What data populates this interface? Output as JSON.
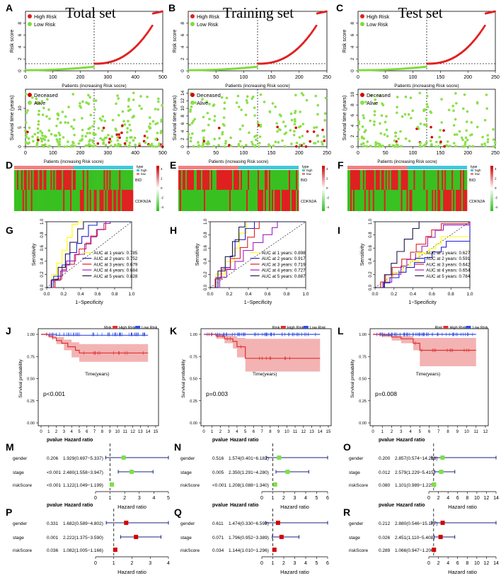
{
  "columns": [
    {
      "title": "Total set"
    },
    {
      "title": "Training set"
    },
    {
      "title": "Test set"
    }
  ],
  "colors": {
    "high": "#e02020",
    "low": "#7ddc3a",
    "deceased": "#d40000",
    "alive": "#8be04a",
    "km_high": "#e03030",
    "km_low": "#3050e0",
    "km_band": "#f3b3b3",
    "forest": "#1a237e",
    "forest_sq_green": "#7ee04a",
    "forest_sq_red": "#d40000",
    "heat_red": "#e02020",
    "heat_green": "#38c020",
    "heat_top_pink": "#f08080",
    "heat_top_cyan": "#40c8d8"
  },
  "chart_data": [
    {
      "panel": "A",
      "type": "scatter",
      "title": "Total set",
      "xlabel": "Patients (increasing Risk socre)",
      "ylabel": "Risk score",
      "n": 500,
      "cutoff": 250,
      "cutoff_value": 1.2,
      "ylim": [
        0,
        10
      ],
      "xticks": [
        "0",
        "100",
        "200",
        "300",
        "400",
        "500"
      ],
      "yticks": [
        "0",
        "2",
        "4",
        "6",
        "8"
      ],
      "legend": [
        "High Risk",
        "Low Risk"
      ]
    },
    {
      "panel": "B",
      "type": "scatter",
      "title": "Training set",
      "xlabel": "Patients (increasing Risk socre)",
      "ylabel": "Risk score",
      "n": 250,
      "cutoff": 125,
      "cutoff_value": 1.2,
      "ylim": [
        0,
        10
      ],
      "xticks": [
        "0",
        "50",
        "100",
        "150",
        "200",
        "250"
      ],
      "yticks": [
        "0",
        "2",
        "4",
        "6",
        "8"
      ],
      "legend": [
        "High Risk",
        "Low Risk"
      ]
    },
    {
      "panel": "C",
      "type": "scatter",
      "title": "Test set",
      "xlabel": "Patients (increasing Risk socre)",
      "ylabel": "Risk score",
      "n": 250,
      "cutoff": 125,
      "cutoff_value": 1.2,
      "ylim": [
        0,
        10
      ],
      "xticks": [
        "0",
        "50",
        "100",
        "150",
        "200",
        "250"
      ],
      "yticks": [
        "0",
        "2",
        "4",
        "6",
        "8"
      ],
      "legend": [
        "High Risk",
        "Low Risk"
      ]
    },
    {
      "panel": "",
      "type": "scatter",
      "xlabel": "",
      "ylabel": "Survival time (years)",
      "n": 500,
      "cutoff": 250,
      "ylim": [
        0,
        15
      ],
      "xticks": [
        "0",
        "100",
        "200",
        "300",
        "400",
        "500"
      ],
      "yticks": [
        "0",
        "5",
        "10"
      ],
      "legend": [
        "Deceased",
        "Alive"
      ]
    },
    {
      "panel": "",
      "type": "scatter",
      "xlabel": "",
      "ylabel": "Survival time (years)",
      "n": 250,
      "cutoff": 125,
      "ylim": [
        0,
        15
      ],
      "xticks": [
        "0",
        "50",
        "100",
        "150",
        "200",
        "250"
      ],
      "yticks": [
        "0",
        "2",
        "4",
        "6",
        "8",
        "10",
        "12",
        "14"
      ],
      "legend": [
        "Deceased",
        "Alive"
      ]
    },
    {
      "panel": "",
      "type": "scatter",
      "xlabel": "",
      "ylabel": "Survival time (years)",
      "n": 250,
      "cutoff": 125,
      "ylim": [
        0,
        11
      ],
      "xticks": [
        "0",
        "50",
        "100",
        "150",
        "200",
        "250"
      ],
      "yticks": [
        "0",
        "2",
        "4",
        "6",
        "8",
        "10"
      ],
      "legend": [
        "Deceased",
        "Alive"
      ]
    },
    {
      "panel": "D",
      "type": "heatmap",
      "title": "Patients (increasing Risk socre)",
      "rows": [
        "BID",
        "CDKN2A"
      ],
      "legend_title": "type",
      "groups": [
        "high",
        "low"
      ],
      "scale": [
        "4",
        "2",
        "0",
        "-2",
        "-4"
      ]
    },
    {
      "panel": "E",
      "type": "heatmap",
      "title": "Patients (increasing Risk socre)",
      "rows": [
        "BID",
        "CDKN2A"
      ],
      "legend_title": "type",
      "groups": [
        "high",
        "low"
      ],
      "scale": [
        "4",
        "2",
        "0",
        "-2",
        "-4"
      ]
    },
    {
      "panel": "F",
      "type": "heatmap",
      "title": "Patients (increasing Risk socre)",
      "rows": [
        "BID",
        "CDKN2A"
      ],
      "legend_title": "type",
      "groups": [
        "high",
        "low"
      ],
      "scale": [
        "4",
        "2",
        "0",
        "-2",
        "-4"
      ]
    },
    {
      "panel": "G",
      "type": "line",
      "xlabel": "1−Specificity",
      "ylabel": "Sensitivity",
      "xticks": [
        "0.0",
        "0.2",
        "0.4",
        "0.6",
        "0.8",
        "1.0"
      ],
      "yticks": [
        "0.0",
        "0.2",
        "0.4",
        "0.6",
        "0.8",
        "1.0"
      ],
      "series": [
        {
          "name": "AUC at 1 years: 0.785",
          "color": "#ffff00"
        },
        {
          "name": "AUC at 2 years: 0.752",
          "color": "#2020d0"
        },
        {
          "name": "AUC at 3 years: 0.679",
          "color": "#e02020"
        },
        {
          "name": "AUC at 4 years: 0.684",
          "color": "#a020c0"
        },
        {
          "name": "AUC at 5 years: 0.828",
          "color": "#1a1a4a"
        }
      ]
    },
    {
      "panel": "H",
      "type": "line",
      "xlabel": "1−Specificity",
      "ylabel": "Sensitivity",
      "xticks": [
        "0.0",
        "0.2",
        "0.4",
        "0.6",
        "0.8",
        "1.0"
      ],
      "yticks": [
        "0.0",
        "0.2",
        "0.4",
        "0.6",
        "0.8",
        "1.0"
      ],
      "series": [
        {
          "name": "AUC at 1 years: 0.898",
          "color": "#ffff00"
        },
        {
          "name": "AUC at 2 years: 0.917",
          "color": "#2020d0"
        },
        {
          "name": "AUC at 3 years: 0.719",
          "color": "#e02020"
        },
        {
          "name": "AUC at 4 years: 0.727",
          "color": "#a020c0"
        },
        {
          "name": "AUC at 5 years: 0.887",
          "color": "#1a1a4a"
        }
      ]
    },
    {
      "panel": "I",
      "type": "line",
      "xlabel": "1−Specificity",
      "ylabel": "Sensitivity",
      "xticks": [
        "0.0",
        "0.2",
        "0.4",
        "0.6",
        "0.8",
        "1.0"
      ],
      "yticks": [
        "0.0",
        "0.2",
        "0.4",
        "0.6",
        "0.8",
        "1.0"
      ],
      "series": [
        {
          "name": "AUC at 1 years: 0.627",
          "color": "#ffff00"
        },
        {
          "name": "AUC at 2 years: 0.591",
          "color": "#2020d0"
        },
        {
          "name": "AUC at 3 years: 0.642",
          "color": "#e02020"
        },
        {
          "name": "AUC at 4 years: 0.654",
          "color": "#a020c0"
        },
        {
          "name": "AUC at 5 years: 0.784",
          "color": "#1a1a4a"
        }
      ]
    },
    {
      "panel": "J",
      "type": "line",
      "xlabel": "Time(years)",
      "ylabel": "Survival probability",
      "legend": [
        "Risk",
        "High Risk",
        "Low Risk"
      ],
      "pvalue": "p<0.001",
      "xmax": 15,
      "xticks": [
        "0",
        "1",
        "2",
        "3",
        "4",
        "5",
        "6",
        "7",
        "8",
        "9",
        "10",
        "11",
        "12",
        "13",
        "14",
        "15"
      ],
      "yticks": [
        "0.00",
        "0.25",
        "0.50",
        "0.75",
        "1.00"
      ],
      "high": [
        [
          0,
          1
        ],
        [
          0.5,
          1
        ],
        [
          1,
          0.98
        ],
        [
          1.5,
          0.96
        ],
        [
          2,
          0.93
        ],
        [
          2.7,
          0.9
        ],
        [
          3.5,
          0.86
        ],
        [
          4.5,
          0.82
        ],
        [
          5,
          0.79
        ],
        [
          14,
          0.79
        ]
      ],
      "low": [
        [
          0,
          1
        ],
        [
          1.5,
          1
        ],
        [
          2,
          0.99
        ],
        [
          14,
          0.99
        ]
      ],
      "band": [
        [
          0,
          1,
          1
        ],
        [
          1,
          0.99,
          0.96
        ],
        [
          2,
          0.97,
          0.89
        ],
        [
          3,
          0.94,
          0.82
        ],
        [
          4,
          0.91,
          0.74
        ],
        [
          5,
          0.89,
          0.69
        ],
        [
          14,
          0.89,
          0.69
        ]
      ]
    },
    {
      "panel": "K",
      "type": "line",
      "xlabel": "Time(years)",
      "ylabel": "Survival probability",
      "legend": [
        "Risk",
        "High Risk",
        "Low Risk"
      ],
      "pvalue": "p=0.003",
      "xmax": 15,
      "xticks": [
        "0",
        "1",
        "2",
        "3",
        "4",
        "5",
        "6",
        "7",
        "8",
        "9",
        "10",
        "11",
        "12",
        "13",
        "14",
        "15"
      ],
      "yticks": [
        "0.00",
        "0.25",
        "0.50",
        "0.75",
        "1.00"
      ],
      "high": [
        [
          0,
          1
        ],
        [
          1.5,
          0.98
        ],
        [
          2.5,
          0.95
        ],
        [
          3.5,
          0.92
        ],
        [
          4,
          0.86
        ],
        [
          5,
          0.73
        ],
        [
          14,
          0.73
        ]
      ],
      "low": [
        [
          0,
          1
        ],
        [
          14,
          1
        ]
      ],
      "band": [
        [
          0,
          1,
          1
        ],
        [
          1.5,
          1,
          0.95
        ],
        [
          2.5,
          0.99,
          0.9
        ],
        [
          3.5,
          0.98,
          0.84
        ],
        [
          4,
          0.96,
          0.74
        ],
        [
          5,
          0.95,
          0.58
        ],
        [
          14,
          0.95,
          0.58
        ]
      ]
    },
    {
      "panel": "L",
      "type": "line",
      "xlabel": "Time(years)",
      "ylabel": "Survival probability",
      "legend": [
        "Risk",
        "High Risk",
        "Low Risk"
      ],
      "pvalue": "p=0.008",
      "xmax": 12,
      "xticks": [
        "0",
        "1",
        "2",
        "3",
        "4",
        "5",
        "6",
        "7",
        "8",
        "9",
        "10",
        "11",
        "12"
      ],
      "yticks": [
        "0.00",
        "0.25",
        "0.50",
        "0.75",
        "1.00"
      ],
      "high": [
        [
          0,
          1
        ],
        [
          1,
          0.99
        ],
        [
          2,
          0.97
        ],
        [
          3,
          0.95
        ],
        [
          4.3,
          0.9
        ],
        [
          5,
          0.82
        ],
        [
          11,
          0.82
        ]
      ],
      "low": [
        [
          0,
          1
        ],
        [
          11,
          1
        ]
      ],
      "band": [
        [
          0,
          1,
          1
        ],
        [
          1,
          1,
          0.97
        ],
        [
          2,
          0.99,
          0.93
        ],
        [
          3,
          0.98,
          0.9
        ],
        [
          4.3,
          0.96,
          0.82
        ],
        [
          5,
          0.96,
          0.64
        ],
        [
          11,
          0.96,
          0.64
        ]
      ]
    },
    {
      "panel": "M",
      "type": "forest",
      "xlabel": "Hazard ratio",
      "header": [
        "pvalue",
        "Hazard ratio"
      ],
      "marker": "green",
      "xlim": [
        0,
        5
      ],
      "xticks": [
        "0",
        "1",
        "2",
        "3",
        "4",
        "5"
      ],
      "rows": [
        {
          "label": "gender",
          "pvalue": "0.206",
          "hr": "1.929(0.697−5.337)",
          "est": 1.929,
          "lo": 0.697,
          "hi": 5.337
        },
        {
          "label": "stage",
          "pvalue": "<0.001",
          "hr": "2.480(1.558−3.947)",
          "est": 2.48,
          "lo": 1.558,
          "hi": 3.947
        },
        {
          "label": "riskScore",
          "pvalue": "<0.001",
          "hr": "1.122(1.049−1.199)",
          "est": 1.122,
          "lo": 1.049,
          "hi": 1.199
        }
      ]
    },
    {
      "panel": "N",
      "type": "forest",
      "xlabel": "Hazard ratio",
      "header": [
        "pvalue",
        "Hazard ratio"
      ],
      "marker": "green",
      "xlim": [
        0,
        6
      ],
      "xticks": [
        "0",
        "1",
        "2",
        "3",
        "4",
        "5",
        "6"
      ],
      "rows": [
        {
          "label": "gender",
          "pvalue": "0.516",
          "hr": "1.574(0.401−6.182)",
          "est": 1.574,
          "lo": 0.401,
          "hi": 6.182
        },
        {
          "label": "stage",
          "pvalue": "0.005",
          "hr": "2.350(1.291−4.280)",
          "est": 2.35,
          "lo": 1.291,
          "hi": 4.28
        },
        {
          "label": "riskScore",
          "pvalue": "<0.001",
          "hr": "1.208(1.088−1.340)",
          "est": 1.208,
          "lo": 1.088,
          "hi": 1.34
        }
      ]
    },
    {
      "panel": "O",
      "type": "forest",
      "xlabel": "Hazard ratio",
      "header": [
        "pvalue",
        "Hazard ratio"
      ],
      "marker": "green",
      "xlim": [
        0,
        14
      ],
      "xticks": [
        "0",
        "2",
        "4",
        "6",
        "8",
        "10",
        "12",
        "14"
      ],
      "rows": [
        {
          "label": "gender",
          "pvalue": "0.200",
          "hr": "2.857(0.574−14.218)",
          "est": 2.857,
          "lo": 0.574,
          "hi": 14.218
        },
        {
          "label": "stage",
          "pvalue": "0.012",
          "hr": "2.579(1.229−5.415)",
          "est": 2.579,
          "lo": 1.229,
          "hi": 5.415
        },
        {
          "label": "riskScore",
          "pvalue": "0.080",
          "hr": "1.101(0.989−1.225)",
          "est": 1.101,
          "lo": 0.989,
          "hi": 1.225
        }
      ]
    },
    {
      "panel": "P",
      "type": "forest",
      "xlabel": "Hazard ratio",
      "header": [
        "pvalue",
        "Hazard ratio"
      ],
      "marker": "red",
      "xlim": [
        0,
        4
      ],
      "xticks": [
        "0",
        "1",
        "2",
        "3",
        "4"
      ],
      "rows": [
        {
          "label": "gender",
          "pvalue": "0.331",
          "hr": "1.682(0.589−4.802)",
          "est": 1.682,
          "lo": 0.589,
          "hi": 4.802
        },
        {
          "label": "stage",
          "pvalue": "0.001",
          "hr": "2.222(1.375−3.590)",
          "est": 2.222,
          "lo": 1.375,
          "hi": 3.59
        },
        {
          "label": "riskScore",
          "pvalue": "0.036",
          "hr": "1.082(1.005−1.166)",
          "est": 1.082,
          "lo": 1.005,
          "hi": 1.166
        }
      ]
    },
    {
      "panel": "Q",
      "type": "forest",
      "xlabel": "Hazard ratio",
      "header": [
        "pvalue",
        "Hazard ratio"
      ],
      "marker": "red",
      "xlim": [
        0,
        6
      ],
      "xticks": [
        "0",
        "1",
        "2",
        "3",
        "4",
        "5",
        "6"
      ],
      "rows": [
        {
          "label": "gender",
          "pvalue": "0.611",
          "hr": "1.474(0.330−6.593)",
          "est": 1.474,
          "lo": 0.33,
          "hi": 6.593
        },
        {
          "label": "stage",
          "pvalue": "0.071",
          "hr": "1.796(0.952−3.389)",
          "est": 1.796,
          "lo": 0.952,
          "hi": 3.389
        },
        {
          "label": "riskScore",
          "pvalue": "0.034",
          "hr": "1.144(1.010−1.296)",
          "est": 1.144,
          "lo": 1.01,
          "hi": 1.296
        }
      ]
    },
    {
      "panel": "R",
      "type": "forest",
      "xlabel": "Hazard ratio",
      "header": [
        "pvalue",
        "Hazard ratio"
      ],
      "marker": "red",
      "xlim": [
        0,
        14
      ],
      "xticks": [
        "0",
        "2",
        "4",
        "6",
        "8",
        "10",
        "12",
        "14"
      ],
      "rows": [
        {
          "label": "gender",
          "pvalue": "0.212",
          "hr": "2.880(0.546−15.177)",
          "est": 2.88,
          "lo": 0.546,
          "hi": 15.177
        },
        {
          "label": "stage",
          "pvalue": "0.026",
          "hr": "2.451(1.110−5.408)",
          "est": 2.451,
          "lo": 1.11,
          "hi": 5.408
        },
        {
          "label": "riskScore",
          "pvalue": "0.289",
          "hr": "1.066(0.947−1.200)",
          "est": 1.066,
          "lo": 0.947,
          "hi": 1.2
        }
      ]
    }
  ]
}
